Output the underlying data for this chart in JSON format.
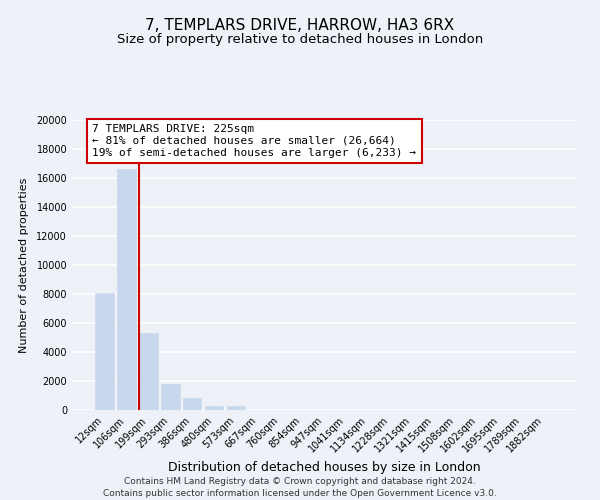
{
  "title": "7, TEMPLARS DRIVE, HARROW, HA3 6RX",
  "subtitle": "Size of property relative to detached houses in London",
  "xlabel": "Distribution of detached houses by size in London",
  "ylabel": "Number of detached properties",
  "categories": [
    "12sqm",
    "106sqm",
    "199sqm",
    "293sqm",
    "386sqm",
    "480sqm",
    "573sqm",
    "667sqm",
    "760sqm",
    "854sqm",
    "947sqm",
    "1041sqm",
    "1134sqm",
    "1228sqm",
    "1321sqm",
    "1415sqm",
    "1508sqm",
    "1602sqm",
    "1695sqm",
    "1789sqm",
    "1882sqm"
  ],
  "values": [
    8100,
    16600,
    5300,
    1800,
    800,
    300,
    300,
    0,
    0,
    0,
    0,
    0,
    0,
    0,
    0,
    0,
    0,
    0,
    0,
    0,
    0
  ],
  "bar_color": "#c8d8ec",
  "bar_edge_color": "#c8d8ec",
  "property_line_color": "#cc0000",
  "annotation_line1": "7 TEMPLARS DRIVE: 225sqm",
  "annotation_line2": "← 81% of detached houses are smaller (26,664)",
  "annotation_line3": "19% of semi-detached houses are larger (6,233) →",
  "annotation_box_color": "#ffffff",
  "annotation_box_edge_color": "#cc0000",
  "ylim": [
    0,
    20000
  ],
  "yticks": [
    0,
    2000,
    4000,
    6000,
    8000,
    10000,
    12000,
    14000,
    16000,
    18000,
    20000
  ],
  "background_color": "#eef2f8",
  "grid_color": "#ffffff",
  "footer_line1": "Contains HM Land Registry data © Crown copyright and database right 2024.",
  "footer_line2": "Contains public sector information licensed under the Open Government Licence v3.0.",
  "title_fontsize": 11,
  "subtitle_fontsize": 9.5,
  "xlabel_fontsize": 9,
  "ylabel_fontsize": 8,
  "tick_fontsize": 7,
  "annotation_fontsize": 8,
  "footer_fontsize": 6.5
}
